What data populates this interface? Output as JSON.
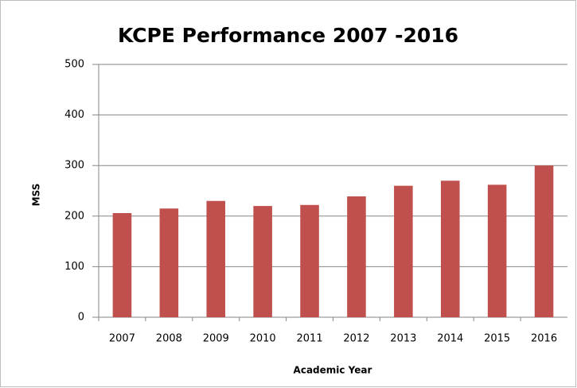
{
  "chart_data": {
    "type": "bar",
    "title": "KCPE Performance 2007 -2016",
    "x_label": "Academic Year",
    "y_label": "MSS",
    "categories": [
      "2007",
      "2008",
      "2009",
      "2010",
      "2011",
      "2012",
      "2013",
      "2014",
      "2015",
      "2016"
    ],
    "values": [
      206,
      215,
      230,
      220,
      222,
      239,
      260,
      270,
      262,
      300
    ],
    "color": "#c0504d",
    "ylim": [
      0,
      500
    ],
    "yticks": [
      0,
      100,
      200,
      300,
      400,
      500
    ],
    "grid": true
  }
}
